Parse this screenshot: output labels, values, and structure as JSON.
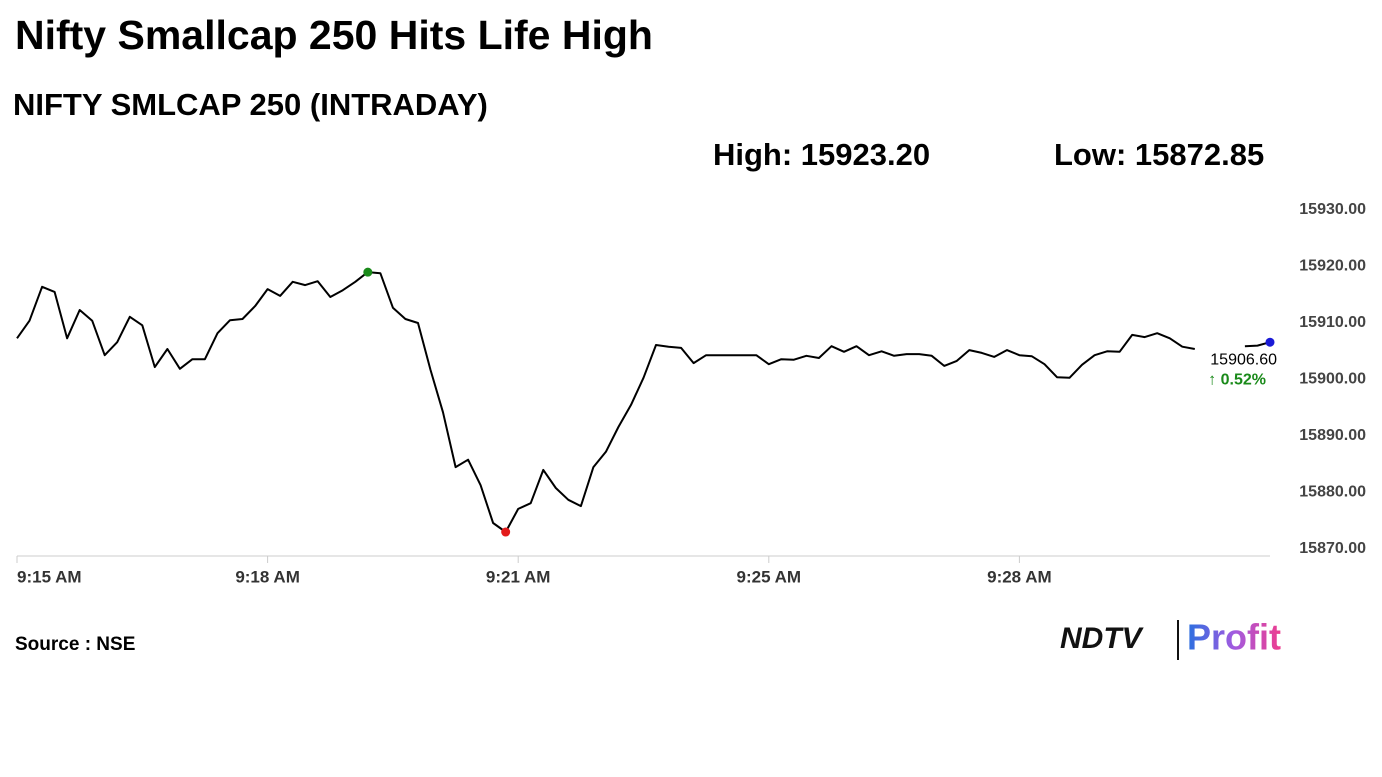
{
  "chart_data": {
    "type": "line",
    "title": "Nifty Smallcap 250 Hits Life High",
    "subtitle": "NIFTY SMLCAP 250 (INTRADAY)",
    "high_label": "High: 15923.20",
    "low_label": "Low: 15872.85",
    "last_label": "15906.60",
    "change_label": "↑ 0.52%",
    "source": "Source : NSE",
    "brand": {
      "name": "NDTV",
      "product": "Profit"
    },
    "categories": [
      "9:15 AM",
      null,
      null,
      null,
      null,
      null,
      null,
      null,
      null,
      null,
      null,
      null,
      null,
      null,
      null,
      null,
      null,
      null,
      null,
      null,
      "9:18 AM",
      null,
      null,
      null,
      null,
      null,
      null,
      null,
      null,
      null,
      null,
      null,
      null,
      null,
      null,
      null,
      null,
      null,
      null,
      null,
      "9:21 AM",
      null,
      null,
      null,
      null,
      null,
      null,
      null,
      null,
      null,
      null,
      null,
      null,
      null,
      null,
      null,
      null,
      null,
      null,
      null,
      "9:25 AM",
      null,
      null,
      null,
      null,
      null,
      null,
      null,
      null,
      null,
      null,
      null,
      null,
      null,
      null,
      null,
      null,
      null,
      null,
      null,
      "9:28 AM",
      null,
      null,
      null,
      null,
      null,
      null,
      null,
      null,
      null,
      null,
      null,
      null,
      null,
      null,
      null,
      null,
      null,
      null,
      null,
      null
    ],
    "series": [
      {
        "name": "NIFTY SMLCAP 250",
        "color": "#000000",
        "values": [
          15907.3,
          15910.4,
          15916.4,
          15915.5,
          15907.3,
          15912.3,
          15910.4,
          15904.3,
          15906.6,
          15911.1,
          15909.6,
          15902.2,
          15905.4,
          15901.9,
          15903.6,
          15903.6,
          15908.2,
          15910.5,
          15910.7,
          15913.0,
          15916.0,
          15914.8,
          15917.3,
          15916.7,
          15917.4,
          15914.6,
          15915.8,
          15917.3,
          15919.0,
          15918.8,
          15912.7,
          15910.7,
          15910.0,
          15901.7,
          15894.2,
          15884.5,
          15885.8,
          15881.3,
          15874.6,
          15873.0,
          15877.1,
          15878.1,
          15884.0,
          15880.8,
          15878.7,
          15877.6,
          15884.5,
          15887.2,
          15891.6,
          15895.5,
          15900.3,
          15906.1,
          15905.8,
          15905.6,
          15902.9,
          15904.3,
          15904.3,
          15904.3,
          15904.3,
          15904.3,
          15902.7,
          15903.6,
          15903.5,
          15904.2,
          15903.8,
          15905.9,
          15904.9,
          15905.9,
          15904.3,
          15905.0,
          15904.2,
          15904.5,
          15904.5,
          15904.2,
          15902.4,
          15903.3,
          15905.2,
          15904.7,
          15904.0,
          15905.2,
          15904.3,
          15904.1,
          15902.7,
          15900.4,
          15900.3,
          15902.6,
          15904.3,
          15905.0,
          15904.9,
          15907.9,
          15907.5,
          15908.2,
          15907.3,
          15905.8,
          15905.4,
          null,
          null,
          null,
          15905.9,
          15906.0,
          15906.6
        ]
      }
    ],
    "high_color": "#1a8a1a",
    "low_color": "#e31b1b",
    "last_color": "#1a1ad6",
    "change_color": "#1a8a1a",
    "ylim": [
      15870,
      15930
    ],
    "yticks": [
      {
        "value": 15870,
        "label": "15870.00"
      },
      {
        "value": 15880,
        "label": "15880.00"
      },
      {
        "value": 15890,
        "label": "15890.00"
      },
      {
        "value": 15900,
        "label": "15900.00"
      },
      {
        "value": 15910,
        "label": "15910.00"
      },
      {
        "value": 15920,
        "label": "15920.00"
      },
      {
        "value": 15930,
        "label": "15930.00"
      }
    ],
    "grid": false
  }
}
